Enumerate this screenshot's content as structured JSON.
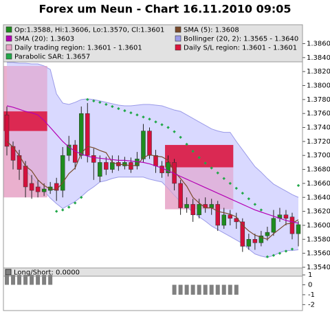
{
  "chart_data": [
    {
      "type": "candlestick",
      "title": "Forex um Neun - Chart 16.11.2010 09:05",
      "ylim": [
        1.3539,
        1.3887
      ],
      "yticks": [
        {
          "value": 1.354,
          "label": "1.3540"
        },
        {
          "value": 1.356,
          "label": "1.3560"
        },
        {
          "value": 1.358,
          "label": "1.3580"
        },
        {
          "value": 1.36,
          "label": "1.3600"
        },
        {
          "value": 1.362,
          "label": "1.3620"
        },
        {
          "value": 1.364,
          "label": "1.3640"
        },
        {
          "value": 1.366,
          "label": "1.3660"
        },
        {
          "value": 1.368,
          "label": "1.3680"
        },
        {
          "value": 1.37,
          "label": "1.3700"
        },
        {
          "value": 1.372,
          "label": "1.3720"
        },
        {
          "value": 1.374,
          "label": "1.3740"
        },
        {
          "value": 1.376,
          "label": "1.3760"
        },
        {
          "value": 1.378,
          "label": "1.3780"
        },
        {
          "value": 1.38,
          "label": "1.3800"
        },
        {
          "value": 1.382,
          "label": "1.3820"
        },
        {
          "value": 1.384,
          "label": "1.3840"
        },
        {
          "value": 1.386,
          "label": "1.3860"
        }
      ],
      "grid": false,
      "candle_legend": "Op:1.3588, Hi:1.3606, Lo:1.3570, Cl:1.3601",
      "up_color": "#1e8c1e",
      "down_color": "#d4103c",
      "open": [
        1.3758,
        1.3713,
        1.37,
        1.3685,
        1.366,
        1.3655,
        1.3648,
        1.365,
        1.366,
        1.365,
        1.37,
        1.3715,
        1.37,
        1.376,
        1.37,
        1.367,
        1.369,
        1.368,
        1.369,
        1.3685,
        1.369,
        1.3685,
        1.3695,
        1.3735,
        1.37,
        1.3685,
        1.3675,
        1.369,
        1.366,
        1.3625,
        1.363,
        1.3615,
        1.363,
        1.3625,
        1.363,
        1.36,
        1.3615,
        1.361,
        1.3605,
        1.357,
        1.358,
        1.3575,
        1.3585,
        1.359,
        1.361,
        1.3615,
        1.3612,
        1.3588
      ],
      "high": [
        1.377,
        1.372,
        1.3708,
        1.3692,
        1.3672,
        1.3665,
        1.366,
        1.3662,
        1.3668,
        1.3712,
        1.3728,
        1.3722,
        1.377,
        1.3775,
        1.371,
        1.37,
        1.3698,
        1.37,
        1.37,
        1.3698,
        1.3697,
        1.3705,
        1.3745,
        1.374,
        1.3708,
        1.3692,
        1.37,
        1.3695,
        1.3665,
        1.364,
        1.3638,
        1.3638,
        1.364,
        1.3638,
        1.3635,
        1.3625,
        1.3622,
        1.3618,
        1.361,
        1.3588,
        1.3588,
        1.3592,
        1.3598,
        1.3622,
        1.3625,
        1.3622,
        1.3618,
        1.3606
      ],
      "low": [
        1.37,
        1.368,
        1.3665,
        1.364,
        1.3638,
        1.364,
        1.3642,
        1.3645,
        1.3635,
        1.364,
        1.3692,
        1.368,
        1.3695,
        1.369,
        1.3665,
        1.3662,
        1.3672,
        1.3675,
        1.3678,
        1.368,
        1.3675,
        1.368,
        1.369,
        1.3695,
        1.3675,
        1.3668,
        1.367,
        1.365,
        1.3615,
        1.3618,
        1.3605,
        1.361,
        1.3618,
        1.3615,
        1.3592,
        1.3595,
        1.36,
        1.3595,
        1.3562,
        1.3565,
        1.3565,
        1.357,
        1.3578,
        1.3585,
        1.3605,
        1.36,
        1.358,
        1.357
      ],
      "close": [
        1.3713,
        1.3693,
        1.368,
        1.3655,
        1.365,
        1.3648,
        1.3652,
        1.3655,
        1.365,
        1.37,
        1.3715,
        1.369,
        1.376,
        1.37,
        1.369,
        1.369,
        1.368,
        1.369,
        1.3685,
        1.369,
        1.368,
        1.3695,
        1.3735,
        1.37,
        1.3685,
        1.3675,
        1.369,
        1.366,
        1.3625,
        1.363,
        1.3615,
        1.363,
        1.3625,
        1.363,
        1.36,
        1.3615,
        1.361,
        1.3605,
        1.357,
        1.358,
        1.3575,
        1.3585,
        1.359,
        1.361,
        1.3615,
        1.361,
        1.3588,
        1.3601
      ],
      "regions": [
        {
          "name": "Daily trading region: 1.3601 - 1.3601",
          "color": "#e8a6c8",
          "areas": [
            {
              "from": 0,
              "to": 6,
              "low": 1.364,
              "high": 1.3828
            },
            {
              "from": 26,
              "to": 36,
              "low": 1.3623,
              "high": 1.3683
            }
          ]
        },
        {
          "name": "Daily S/L region: 1.3601 - 1.3601",
          "color": "#dc143c",
          "areas": [
            {
              "from": 0,
              "to": 6,
              "low": 1.3735,
              "high": 1.3763
            },
            {
              "from": 26,
              "to": 36,
              "low": 1.3683,
              "high": 1.3715
            }
          ]
        }
      ],
      "bollinger": {
        "name": "Bollinger (20, 2): 1.3565 - 1.3640",
        "color": "#ccccff",
        "line_color": "#9a9ae8",
        "upper": [
          1.3833,
          1.3833,
          1.3832,
          1.3832,
          1.3831,
          1.3831,
          1.3828,
          1.3823,
          1.3788,
          1.3775,
          1.3773,
          1.3776,
          1.378,
          1.3781,
          1.378,
          1.3778,
          1.3776,
          1.3774,
          1.3772,
          1.3771,
          1.3771,
          1.3772,
          1.3773,
          1.3773,
          1.3772,
          1.3771,
          1.3768,
          1.3765,
          1.3763,
          1.3758,
          1.3753,
          1.3748,
          1.3743,
          1.3738,
          1.3735,
          1.3733,
          1.3733,
          1.372,
          1.3708,
          1.3696,
          1.3684,
          1.3676,
          1.3667,
          1.3659,
          1.3654,
          1.3649,
          1.3644,
          1.364
        ],
        "lower": [
          1.3723,
          1.3708,
          1.3693,
          1.3679,
          1.3669,
          1.3659,
          1.3649,
          1.3639,
          1.3631,
          1.3624,
          1.3629,
          1.3634,
          1.3641,
          1.3649,
          1.3655,
          1.3662,
          1.3664,
          1.3667,
          1.3669,
          1.3669,
          1.3669,
          1.3669,
          1.3669,
          1.3666,
          1.3664,
          1.3662,
          1.3653,
          1.3643,
          1.3634,
          1.3626,
          1.3619,
          1.3612,
          1.3606,
          1.3599,
          1.3594,
          1.3589,
          1.3584,
          1.3579,
          1.3574,
          1.3566,
          1.3559,
          1.3556,
          1.3554,
          1.3557,
          1.3561,
          1.3564,
          1.3564,
          1.3565
        ]
      },
      "lines": [
        {
          "name": "SMA (5): 1.3608",
          "color": "#7a4a2a",
          "values": [
            1.372,
            1.3712,
            1.37,
            1.3685,
            1.3678,
            1.3665,
            1.3657,
            1.3652,
            1.3651,
            1.3661,
            1.3674,
            1.3682,
            1.3703,
            1.3713,
            1.3711,
            1.3707,
            1.3704,
            1.369,
            1.3687,
            1.3687,
            1.3685,
            1.3686,
            1.3697,
            1.3701,
            1.3699,
            1.3698,
            1.3693,
            1.3677,
            1.3667,
            1.3656,
            1.364,
            1.3632,
            1.3625,
            1.3625,
            1.362,
            1.3618,
            1.3616,
            1.3612,
            1.36,
            1.3592,
            1.3586,
            1.3583,
            1.358,
            1.3588,
            1.3595,
            1.3602,
            1.3603,
            1.3608
          ]
        },
        {
          "name": "SMA (20): 1.3603",
          "color": "#b400b4",
          "values": [
            1.3771,
            1.3769,
            1.3766,
            1.3763,
            1.3761,
            1.3758,
            1.375,
            1.374,
            1.373,
            1.372,
            1.3712,
            1.3706,
            1.3702,
            1.3699,
            1.3697,
            1.3696,
            1.3695,
            1.3694,
            1.3693,
            1.3693,
            1.3692,
            1.3691,
            1.369,
            1.3688,
            1.3685,
            1.3682,
            1.3678,
            1.3674,
            1.367,
            1.3666,
            1.3662,
            1.3658,
            1.3654,
            1.365,
            1.3646,
            1.3642,
            1.3638,
            1.3634,
            1.363,
            1.3626,
            1.3622,
            1.3619,
            1.3616,
            1.3613,
            1.361,
            1.3607,
            1.3605,
            1.3603
          ]
        }
      ],
      "sar": {
        "name": "Parabolic SAR: 1.3657",
        "color": "#22a84a",
        "values": [
          null,
          null,
          null,
          null,
          null,
          null,
          null,
          null,
          1.362,
          1.3622,
          1.3626,
          1.3632,
          1.364,
          1.378,
          1.3778,
          1.3776,
          1.3773,
          1.377,
          1.3767,
          1.3764,
          1.3761,
          1.3758,
          1.3755,
          1.3752,
          1.3748,
          1.3744,
          1.374,
          1.3734,
          1.3726,
          1.3716,
          1.3706,
          1.3697,
          1.3689,
          1.3682,
          1.3675,
          1.3667,
          1.366,
          1.3653,
          1.3646,
          1.3638,
          1.363,
          1.3622,
          1.3555,
          1.3557,
          1.356,
          1.3563,
          1.3566,
          1.3657
        ]
      }
    },
    {
      "type": "bar",
      "title": "Long/Short: 0.0000",
      "color": "#808080",
      "ylim": [
        -2.6,
        1.7
      ],
      "yticks": [
        1,
        0,
        -1,
        -2
      ],
      "values": [
        1,
        1,
        1,
        1,
        1,
        1,
        1,
        1,
        0,
        0,
        0,
        0,
        0,
        0,
        0,
        0,
        0,
        0,
        0,
        0,
        0,
        0,
        0,
        0,
        0,
        0,
        0,
        -1,
        -1,
        -1,
        -1,
        -1,
        -1,
        -1,
        -1,
        -1,
        -1,
        -1,
        0,
        0,
        0,
        0,
        0,
        0,
        0,
        0,
        0,
        0
      ]
    }
  ]
}
